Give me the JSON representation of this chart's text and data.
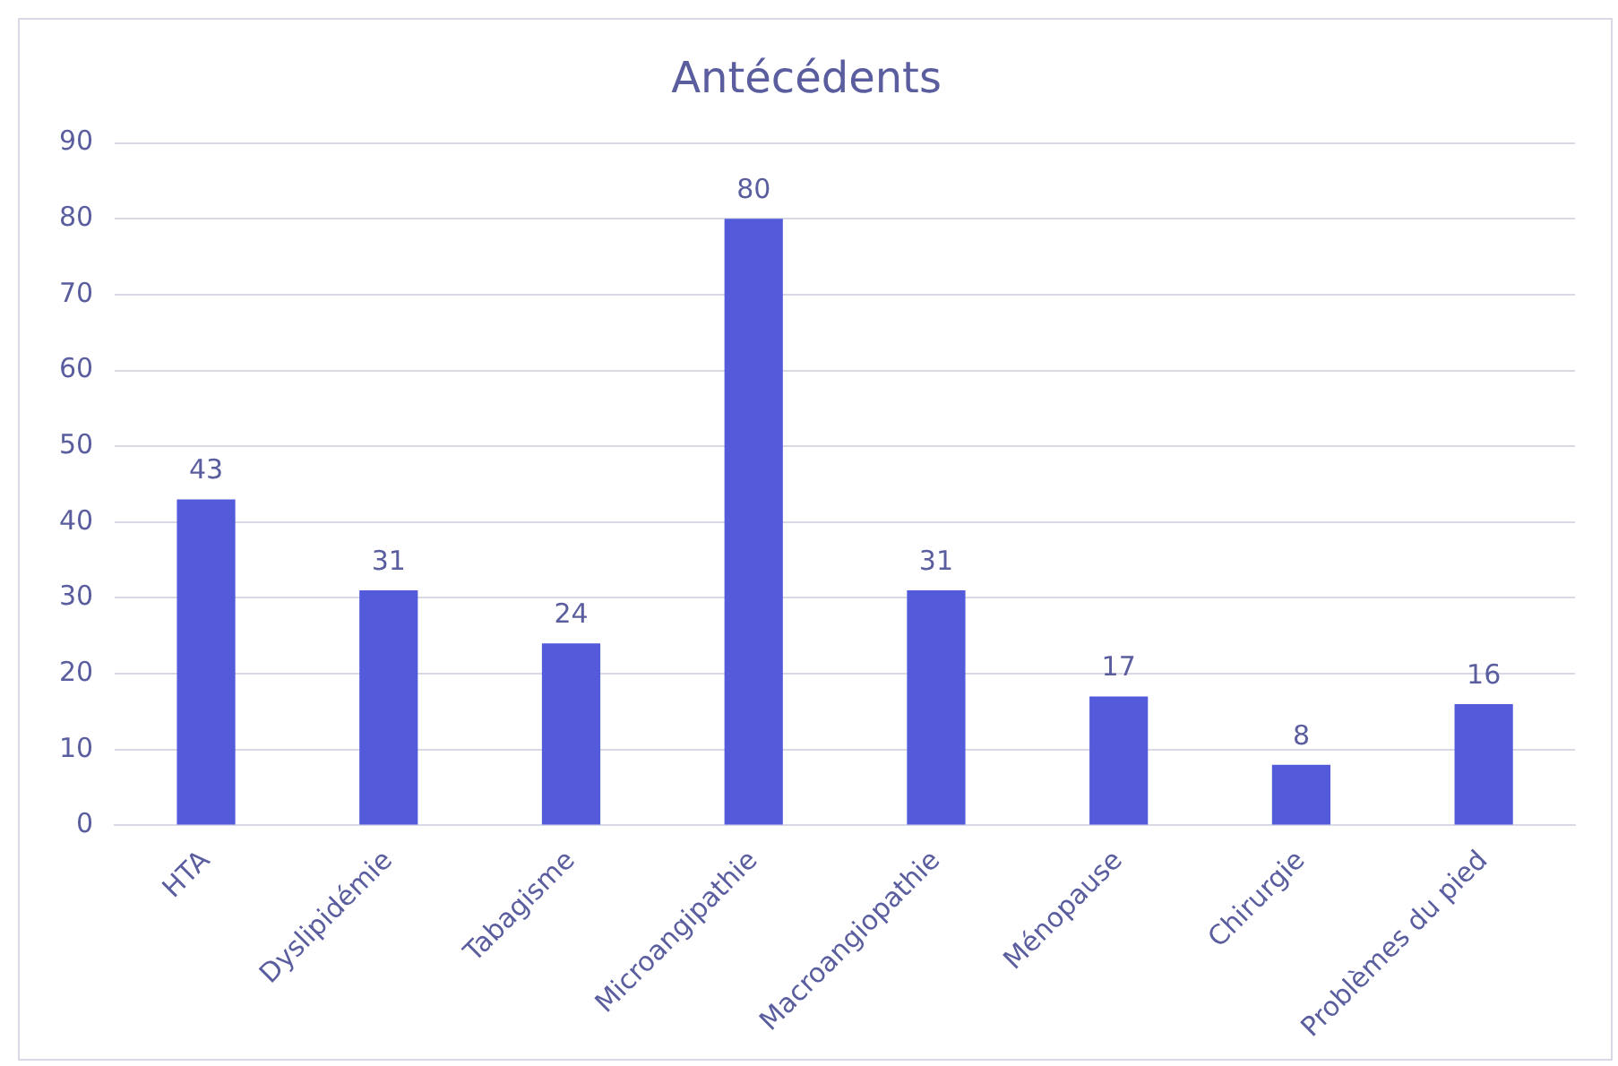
{
  "chart_data": {
    "type": "bar",
    "title": "Antécédents",
    "categories": [
      "HTA",
      "Dyslipidémie",
      "Tabagisme",
      "Microangipathie",
      "Macroangiopathie",
      "Ménopause",
      "Chirurgie",
      "Problèmes du pied"
    ],
    "values": [
      43,
      31,
      24,
      80,
      31,
      17,
      8,
      16
    ],
    "color": "#535bdb",
    "ylim": [
      0,
      90
    ],
    "yticks": [
      0,
      10,
      20,
      30,
      40,
      50,
      60,
      70,
      80,
      90
    ],
    "grid": "y",
    "data_labels": true,
    "legend": false
  }
}
